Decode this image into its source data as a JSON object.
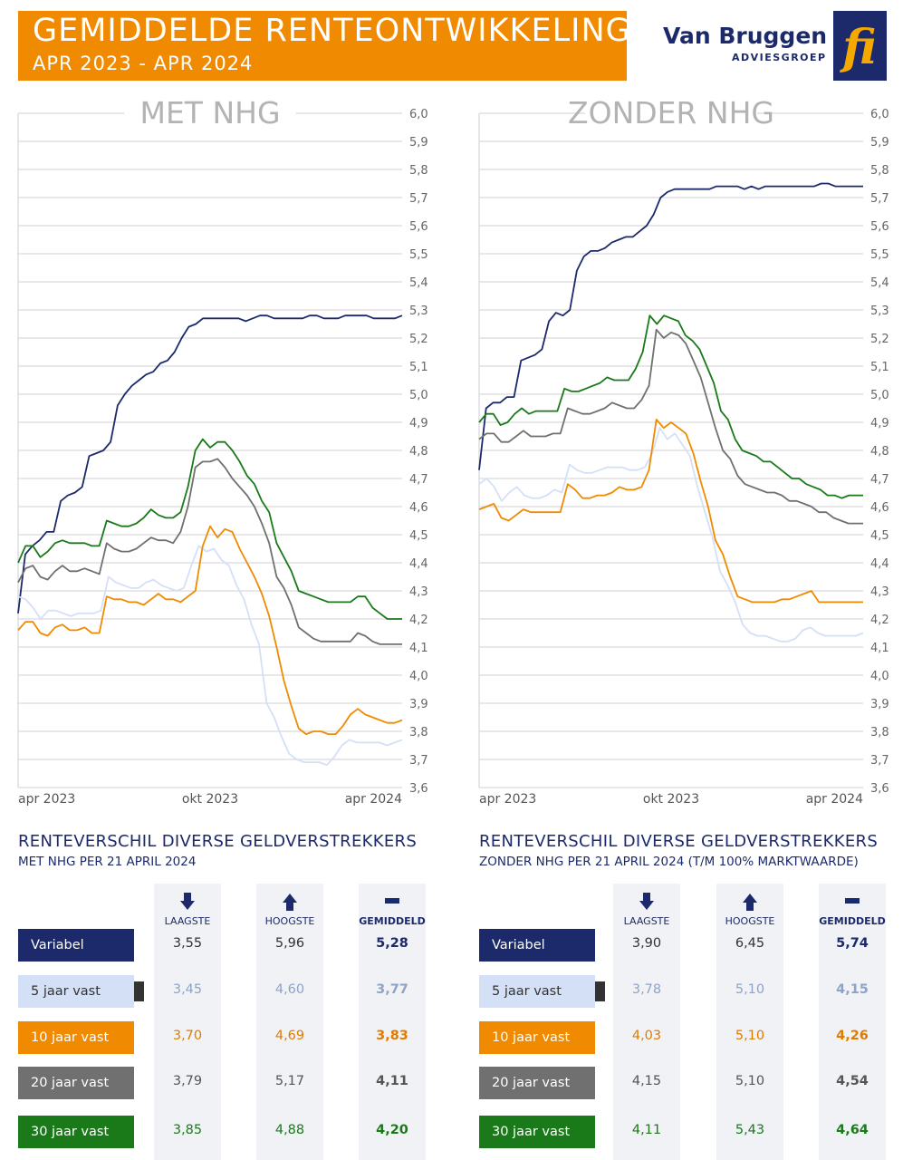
{
  "header": {
    "title": "GEMIDDELDE RENTEONTWIKKELING",
    "subtitle": "APR 2023 - APR 2024"
  },
  "brand": {
    "name": "Van Bruggen",
    "sub": "ADVIESGROEP",
    "logo_letters": "fi"
  },
  "colors": {
    "orange": "#f08a00",
    "navy": "#1c2a6b",
    "light_blue": "#d4e0f5",
    "gray": "#707070",
    "green": "#1a7a1a",
    "grid": "#d9d9d9"
  },
  "chart_data": [
    {
      "type": "line",
      "title": "MET NHG",
      "x_ticks": [
        "apr 2023",
        "okt 2023",
        "apr 2024"
      ],
      "ylim": [
        3.6,
        6.0
      ],
      "y_ticks": [
        "6,0",
        "5,9",
        "5,8",
        "5,7",
        "5,6",
        "5,5",
        "5,4",
        "5,3",
        "5,2",
        "5,1",
        "5,0",
        "4,9",
        "4,8",
        "4,7",
        "4,6",
        "4,5",
        "4,4",
        "4,3",
        "4,2",
        "4,1",
        "4,0",
        "3,9",
        "3,8",
        "3,7",
        "3,6"
      ],
      "grid": "horizontal",
      "series": [
        {
          "name": "Variabel",
          "color": "#1c2a6b",
          "values": [
            4.22,
            4.43,
            4.46,
            4.48,
            4.51,
            4.51,
            4.62,
            4.64,
            4.65,
            4.67,
            4.78,
            4.79,
            4.8,
            4.83,
            4.96,
            5.0,
            5.03,
            5.05,
            5.07,
            5.08,
            5.11,
            5.12,
            5.15,
            5.2,
            5.24,
            5.25,
            5.27,
            5.27,
            5.27,
            5.27,
            5.27,
            5.27,
            5.26,
            5.27,
            5.28,
            5.28,
            5.27,
            5.27,
            5.27,
            5.27,
            5.27,
            5.28,
            5.28,
            5.27,
            5.27,
            5.27,
            5.28,
            5.28,
            5.28,
            5.28,
            5.27,
            5.27,
            5.27,
            5.27,
            5.28
          ]
        },
        {
          "name": "5 jaar vast",
          "color": "#d4e0f5",
          "values": [
            4.28,
            4.27,
            4.24,
            4.2,
            4.23,
            4.23,
            4.22,
            4.21,
            4.22,
            4.22,
            4.22,
            4.23,
            4.35,
            4.33,
            4.32,
            4.31,
            4.31,
            4.33,
            4.34,
            4.32,
            4.31,
            4.3,
            4.31,
            4.39,
            4.46,
            4.44,
            4.45,
            4.41,
            4.39,
            4.32,
            4.27,
            4.18,
            4.11,
            3.9,
            3.85,
            3.78,
            3.72,
            3.7,
            3.69,
            3.69,
            3.69,
            3.68,
            3.71,
            3.75,
            3.77,
            3.76,
            3.76,
            3.76,
            3.76,
            3.75,
            3.76,
            3.77
          ]
        },
        {
          "name": "10 jaar vast",
          "color": "#f08a00",
          "values": [
            4.16,
            4.19,
            4.19,
            4.15,
            4.14,
            4.17,
            4.18,
            4.16,
            4.16,
            4.17,
            4.15,
            4.15,
            4.28,
            4.27,
            4.27,
            4.26,
            4.26,
            4.25,
            4.27,
            4.29,
            4.27,
            4.27,
            4.26,
            4.28,
            4.3,
            4.46,
            4.53,
            4.49,
            4.52,
            4.51,
            4.45,
            4.4,
            4.35,
            4.29,
            4.21,
            4.1,
            3.98,
            3.89,
            3.81,
            3.79,
            3.8,
            3.8,
            3.79,
            3.79,
            3.82,
            3.86,
            3.88,
            3.86,
            3.85,
            3.84,
            3.83,
            3.83,
            3.84
          ]
        },
        {
          "name": "20 jaar vast",
          "color": "#707070",
          "values": [
            4.33,
            4.38,
            4.39,
            4.35,
            4.34,
            4.37,
            4.39,
            4.37,
            4.37,
            4.38,
            4.37,
            4.36,
            4.47,
            4.45,
            4.44,
            4.44,
            4.45,
            4.47,
            4.49,
            4.48,
            4.48,
            4.47,
            4.51,
            4.6,
            4.74,
            4.76,
            4.76,
            4.77,
            4.74,
            4.7,
            4.67,
            4.64,
            4.6,
            4.54,
            4.47,
            4.35,
            4.31,
            4.25,
            4.17,
            4.15,
            4.13,
            4.12,
            4.12,
            4.12,
            4.12,
            4.12,
            4.15,
            4.14,
            4.12,
            4.11,
            4.11,
            4.11,
            4.11
          ]
        },
        {
          "name": "30 jaar vast",
          "color": "#1a7a1a",
          "values": [
            4.4,
            4.46,
            4.46,
            4.42,
            4.44,
            4.47,
            4.48,
            4.47,
            4.47,
            4.47,
            4.46,
            4.46,
            4.55,
            4.54,
            4.53,
            4.53,
            4.54,
            4.56,
            4.59,
            4.57,
            4.56,
            4.56,
            4.58,
            4.67,
            4.8,
            4.84,
            4.81,
            4.83,
            4.83,
            4.8,
            4.76,
            4.71,
            4.68,
            4.62,
            4.58,
            4.47,
            4.42,
            4.37,
            4.3,
            4.29,
            4.28,
            4.27,
            4.26,
            4.26,
            4.26,
            4.26,
            4.28,
            4.28,
            4.24,
            4.22,
            4.2,
            4.2,
            4.2
          ]
        }
      ]
    },
    {
      "type": "line",
      "title": "ZONDER NHG",
      "x_ticks": [
        "apr 2023",
        "okt 2023",
        "apr 2024"
      ],
      "ylim": [
        3.6,
        6.0
      ],
      "y_ticks": [
        "6,0",
        "5,9",
        "5,8",
        "5,7",
        "5,6",
        "5,5",
        "5,4",
        "5,3",
        "5,2",
        "5,1",
        "5,0",
        "4,9",
        "4,8",
        "4,7",
        "4,6",
        "4,5",
        "4,4",
        "4,3",
        "4,2",
        "4,1",
        "4,0",
        "3,9",
        "3,8",
        "3,7",
        "3,6"
      ],
      "grid": "horizontal",
      "series": [
        {
          "name": "Variabel",
          "color": "#1c2a6b",
          "values": [
            4.73,
            4.95,
            4.97,
            4.97,
            4.99,
            4.99,
            5.12,
            5.13,
            5.14,
            5.16,
            5.26,
            5.29,
            5.28,
            5.3,
            5.44,
            5.49,
            5.51,
            5.51,
            5.52,
            5.54,
            5.55,
            5.56,
            5.56,
            5.58,
            5.6,
            5.64,
            5.7,
            5.72,
            5.73,
            5.73,
            5.73,
            5.73,
            5.73,
            5.73,
            5.74,
            5.74,
            5.74,
            5.74,
            5.73,
            5.74,
            5.73,
            5.74,
            5.74,
            5.74,
            5.74,
            5.74,
            5.74,
            5.74,
            5.74,
            5.75,
            5.75,
            5.74,
            5.74,
            5.74,
            5.74,
            5.74
          ]
        },
        {
          "name": "5 jaar vast",
          "color": "#d4e0f5",
          "values": [
            4.68,
            4.7,
            4.67,
            4.62,
            4.65,
            4.67,
            4.64,
            4.63,
            4.63,
            4.64,
            4.66,
            4.65,
            4.75,
            4.73,
            4.72,
            4.72,
            4.73,
            4.74,
            4.74,
            4.74,
            4.73,
            4.73,
            4.74,
            4.79,
            4.88,
            4.84,
            4.86,
            4.82,
            4.78,
            4.67,
            4.58,
            4.49,
            4.37,
            4.32,
            4.26,
            4.18,
            4.15,
            4.14,
            4.14,
            4.13,
            4.12,
            4.12,
            4.13,
            4.16,
            4.17,
            4.15,
            4.14,
            4.14,
            4.14,
            4.14,
            4.14,
            4.15
          ]
        },
        {
          "name": "10 jaar vast",
          "color": "#f08a00",
          "values": [
            4.59,
            4.6,
            4.61,
            4.56,
            4.55,
            4.57,
            4.59,
            4.58,
            4.58,
            4.58,
            4.58,
            4.58,
            4.68,
            4.66,
            4.63,
            4.63,
            4.64,
            4.64,
            4.65,
            4.67,
            4.66,
            4.66,
            4.67,
            4.73,
            4.91,
            4.88,
            4.9,
            4.88,
            4.86,
            4.79,
            4.69,
            4.6,
            4.48,
            4.43,
            4.35,
            4.28,
            4.27,
            4.26,
            4.26,
            4.26,
            4.26,
            4.27,
            4.27,
            4.28,
            4.29,
            4.3,
            4.26,
            4.26,
            4.26,
            4.26,
            4.26,
            4.26,
            4.26
          ]
        },
        {
          "name": "20 jaar vast",
          "color": "#707070",
          "values": [
            4.84,
            4.86,
            4.86,
            4.83,
            4.83,
            4.85,
            4.87,
            4.85,
            4.85,
            4.85,
            4.86,
            4.86,
            4.95,
            4.94,
            4.93,
            4.93,
            4.94,
            4.95,
            4.97,
            4.96,
            4.95,
            4.95,
            4.98,
            5.03,
            5.23,
            5.2,
            5.22,
            5.21,
            5.18,
            5.12,
            5.06,
            4.97,
            4.88,
            4.8,
            4.77,
            4.71,
            4.68,
            4.67,
            4.66,
            4.65,
            4.65,
            4.64,
            4.62,
            4.62,
            4.61,
            4.6,
            4.58,
            4.58,
            4.56,
            4.55,
            4.54,
            4.54,
            4.54
          ]
        },
        {
          "name": "30 jaar vast",
          "color": "#1a7a1a",
          "values": [
            4.9,
            4.93,
            4.93,
            4.89,
            4.9,
            4.93,
            4.95,
            4.93,
            4.94,
            4.94,
            4.94,
            4.94,
            5.02,
            5.01,
            5.01,
            5.02,
            5.03,
            5.04,
            5.06,
            5.05,
            5.05,
            5.05,
            5.09,
            5.15,
            5.28,
            5.25,
            5.28,
            5.27,
            5.26,
            5.21,
            5.19,
            5.16,
            5.1,
            5.04,
            4.94,
            4.91,
            4.84,
            4.8,
            4.79,
            4.78,
            4.76,
            4.76,
            4.74,
            4.72,
            4.7,
            4.7,
            4.68,
            4.67,
            4.66,
            4.64,
            4.64,
            4.63,
            4.64,
            4.64,
            4.64
          ]
        }
      ]
    }
  ],
  "tables": [
    {
      "title": "RENTEVERSCHIL DIVERSE GELDVERSTREKKERS",
      "subtitle": "MET NHG PER 21 APRIL 2024",
      "col_low": "LAAGSTE",
      "col_high": "HOOGSTE",
      "col_avg": "GEMIDDELD",
      "rows": [
        {
          "label": "Variabel",
          "low": "3,55",
          "high": "5,96",
          "avg": "5,28",
          "bg": "#1c2a6b",
          "fg": "#ffffff",
          "value_color": "#333333",
          "avg_color": "#1c2a6b"
        },
        {
          "label": "5 jaar vast",
          "low": "3,45",
          "high": "4,60",
          "avg": "3,77",
          "bg": "#d4e0f5",
          "fg": "#333333",
          "value_color": "#8fa3c8",
          "avg_color": "#8fa3c8"
        },
        {
          "label": "10 jaar vast",
          "low": "3,70",
          "high": "4,69",
          "avg": "3,83",
          "bg": "#f08a00",
          "fg": "#ffffff",
          "value_color": "#e07b00",
          "avg_color": "#e07b00"
        },
        {
          "label": "20 jaar vast",
          "low": "3,79",
          "high": "5,17",
          "avg": "4,11",
          "bg": "#707070",
          "fg": "#ffffff",
          "value_color": "#555555",
          "avg_color": "#555555"
        },
        {
          "label": "30 jaar vast",
          "low": "3,85",
          "high": "4,88",
          "avg": "4,20",
          "bg": "#1a7a1a",
          "fg": "#ffffff",
          "value_color": "#1a7a1a",
          "avg_color": "#1a7a1a"
        }
      ]
    },
    {
      "title": "RENTEVERSCHIL DIVERSE GELDVERSTREKKERS",
      "subtitle": "ZONDER NHG PER 21 APRIL 2024 (T/M 100% MARKTWAARDE)",
      "col_low": "LAAGSTE",
      "col_high": "HOOGSTE",
      "col_avg": "GEMIDDELD",
      "rows": [
        {
          "label": "Variabel",
          "low": "3,90",
          "high": "6,45",
          "avg": "5,74",
          "bg": "#1c2a6b",
          "fg": "#ffffff",
          "value_color": "#333333",
          "avg_color": "#1c2a6b"
        },
        {
          "label": "5 jaar vast",
          "low": "3,78",
          "high": "5,10",
          "avg": "4,15",
          "bg": "#d4e0f5",
          "fg": "#333333",
          "value_color": "#8fa3c8",
          "avg_color": "#8fa3c8"
        },
        {
          "label": "10 jaar vast",
          "low": "4,03",
          "high": "5,10",
          "avg": "4,26",
          "bg": "#f08a00",
          "fg": "#ffffff",
          "value_color": "#e07b00",
          "avg_color": "#e07b00"
        },
        {
          "label": "20 jaar vast",
          "low": "4,15",
          "high": "5,10",
          "avg": "4,54",
          "bg": "#707070",
          "fg": "#ffffff",
          "value_color": "#555555",
          "avg_color": "#555555"
        },
        {
          "label": "30 jaar vast",
          "low": "4,11",
          "high": "5,43",
          "avg": "4,64",
          "bg": "#1a7a1a",
          "fg": "#ffffff",
          "value_color": "#1a7a1a",
          "avg_color": "#1a7a1a"
        }
      ]
    }
  ]
}
